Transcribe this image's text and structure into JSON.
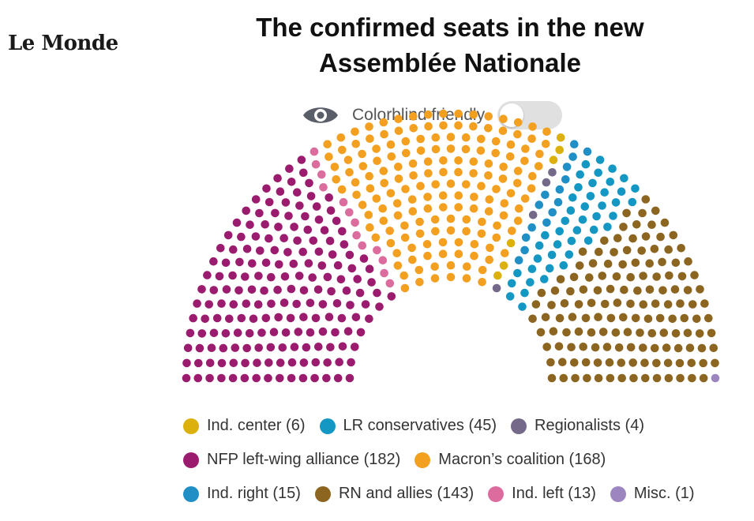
{
  "header": {
    "logo_text": "Le Monde",
    "title_line1": "The confirmed seats in the new",
    "title_line2": "Assemblée Nationale"
  },
  "colorblind_toggle": {
    "label": "Colorblind friendly",
    "enabled": false,
    "icon": "eye-icon"
  },
  "chart_data": {
    "type": "parliament",
    "title": "The confirmed seats in the new Assemblée Nationale",
    "total_seats": 577,
    "order_left_to_right": [
      "nfp",
      "ind_left",
      "macron",
      "ind_center",
      "regionalists",
      "ind_right",
      "lr",
      "rn",
      "misc"
    ],
    "groups": {
      "nfp": {
        "label": "NFP left-wing alliance",
        "seats": 182,
        "color": "#9b1c6e"
      },
      "ind_left": {
        "label": "Ind. left",
        "seats": 13,
        "color": "#dc6b9e"
      },
      "macron": {
        "label": "Macron’s coalition",
        "seats": 168,
        "color": "#f3a021"
      },
      "ind_center": {
        "label": "Ind. center",
        "seats": 6,
        "color": "#dcb10d"
      },
      "regionalists": {
        "label": "Regionalists",
        "seats": 4,
        "color": "#75698a"
      },
      "ind_right": {
        "label": "Ind. right",
        "seats": 15,
        "color": "#1f8fc6"
      },
      "lr": {
        "label": "LR conservatives",
        "seats": 45,
        "color": "#1597c4"
      },
      "rn": {
        "label": "RN and allies",
        "seats": 143,
        "color": "#8c6521"
      },
      "misc": {
        "label": "Misc.",
        "seats": 1,
        "color": "#9d86c0"
      }
    },
    "legend_rows": [
      [
        "ind_center",
        "lr",
        "regionalists"
      ],
      [
        "nfp",
        "macron"
      ],
      [
        "ind_right",
        "rn",
        "ind_left",
        "misc"
      ]
    ]
  }
}
